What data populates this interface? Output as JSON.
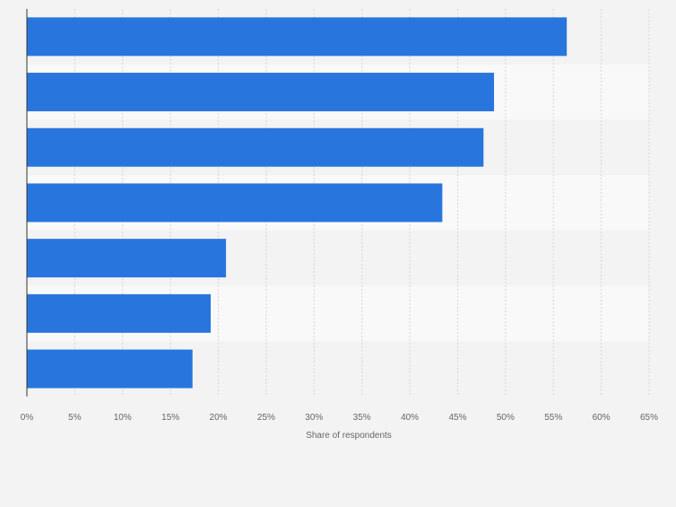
{
  "chart_data": {
    "type": "bar",
    "orientation": "horizontal",
    "categories": [
      "",
      "",
      "",
      "",
      "",
      "",
      ""
    ],
    "values": [
      56.4,
      48.8,
      47.7,
      43.4,
      20.8,
      19.2,
      17.3
    ],
    "xlabel": "Share of respondents",
    "ylabel": "",
    "xlim": [
      0,
      65
    ],
    "tick_labels": [
      "0%",
      "5%",
      "10%",
      "15%",
      "20%",
      "25%",
      "30%",
      "35%",
      "40%",
      "45%",
      "50%",
      "55%",
      "60%",
      "65%"
    ],
    "grid": true,
    "bar_color": "#2876dd",
    "row_colors": [
      "#f3f3f3",
      "#f9f9f9"
    ]
  }
}
